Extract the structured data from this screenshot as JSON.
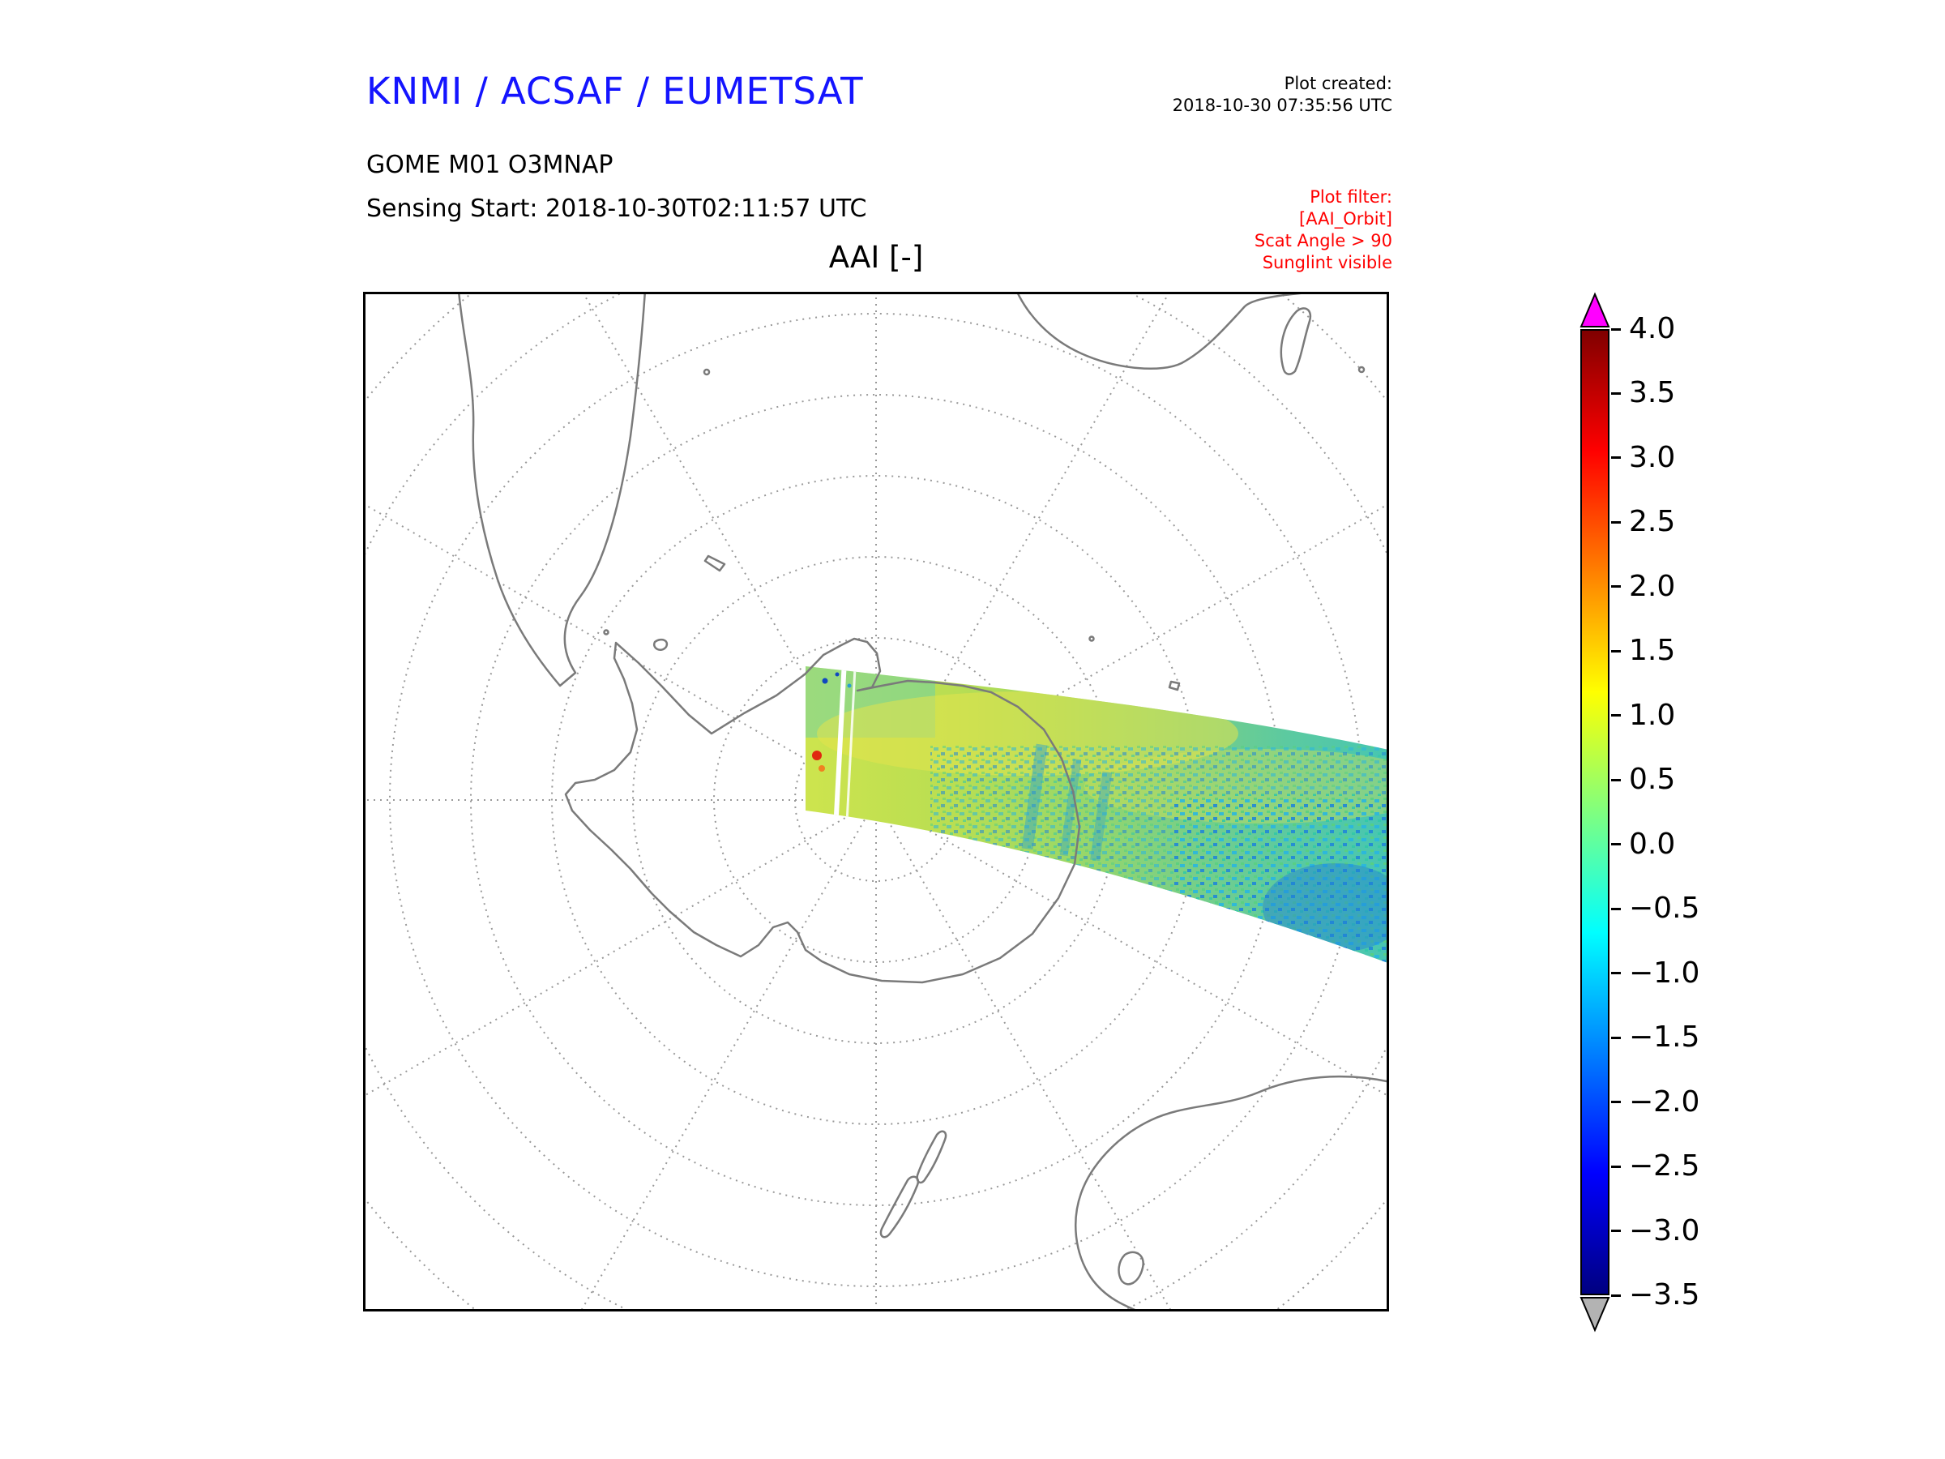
{
  "header": {
    "org_title": "KNMI / ACSAF / EUMETSAT",
    "created_label": "Plot created:",
    "created_value": "2018-10-30 07:35:56 UTC",
    "product": "GOME M01 O3MNAP",
    "sensing_start": "Sensing Start: 2018-10-30T02:11:57 UTC",
    "filter_lines": [
      "Plot filter:",
      "[AAI_Orbit]",
      "Scat Angle > 90",
      "Sunglint visible"
    ]
  },
  "colors": {
    "org_title_blue": "#1414ff",
    "filter_red": "#ff0000",
    "coastline_gray": "#7a7a7a",
    "graticule_gray": "#999999"
  },
  "chart_data": {
    "type": "heatmap",
    "title": "AAI [-]",
    "projection_hint": "south polar stereographic map, square frame, dotted graticule circles every 10 degrees latitude and meridians every 30 degrees",
    "map_features": [
      "Antarctica with peninsula at upper left",
      "South America at top left",
      "southern Africa and Madagascar at top right",
      "Australia, Tasmania and New Zealand at bottom right",
      "scattered sub-antarctic islands"
    ],
    "swath": {
      "description": "Single satellite orbit swath starting near the South Pole and widening toward the east (right) map edge; values mostly between −1.5 and 1.5 shown as yellow-green with dense cyan/blue speckle toward the lower-right, a small red/orange spot near the swath start and thin white data gaps near the start",
      "dominant_value_range": [
        -1.5,
        1.5
      ]
    },
    "colorbar": {
      "min": -3.5,
      "max": 4.0,
      "tick_step": 0.5,
      "tick_labels": [
        "4.0",
        "3.5",
        "3.0",
        "2.5",
        "2.0",
        "1.5",
        "1.0",
        "0.5",
        "0.0",
        "−0.5",
        "−1.0",
        "−1.5",
        "−2.0",
        "−2.5",
        "−3.0",
        "−3.5"
      ],
      "gradient_stops": [
        {
          "pos": 0,
          "color": "#000080"
        },
        {
          "pos": 12.5,
          "color": "#0000ff"
        },
        {
          "pos": 37.5,
          "color": "#00ffff"
        },
        {
          "pos": 62.5,
          "color": "#ffff00"
        },
        {
          "pos": 87.5,
          "color": "#ff0000"
        },
        {
          "pos": 100,
          "color": "#800000"
        }
      ],
      "over_arrow_color": "#ff00ff",
      "under_arrow_color": "#b3b3b3"
    }
  }
}
